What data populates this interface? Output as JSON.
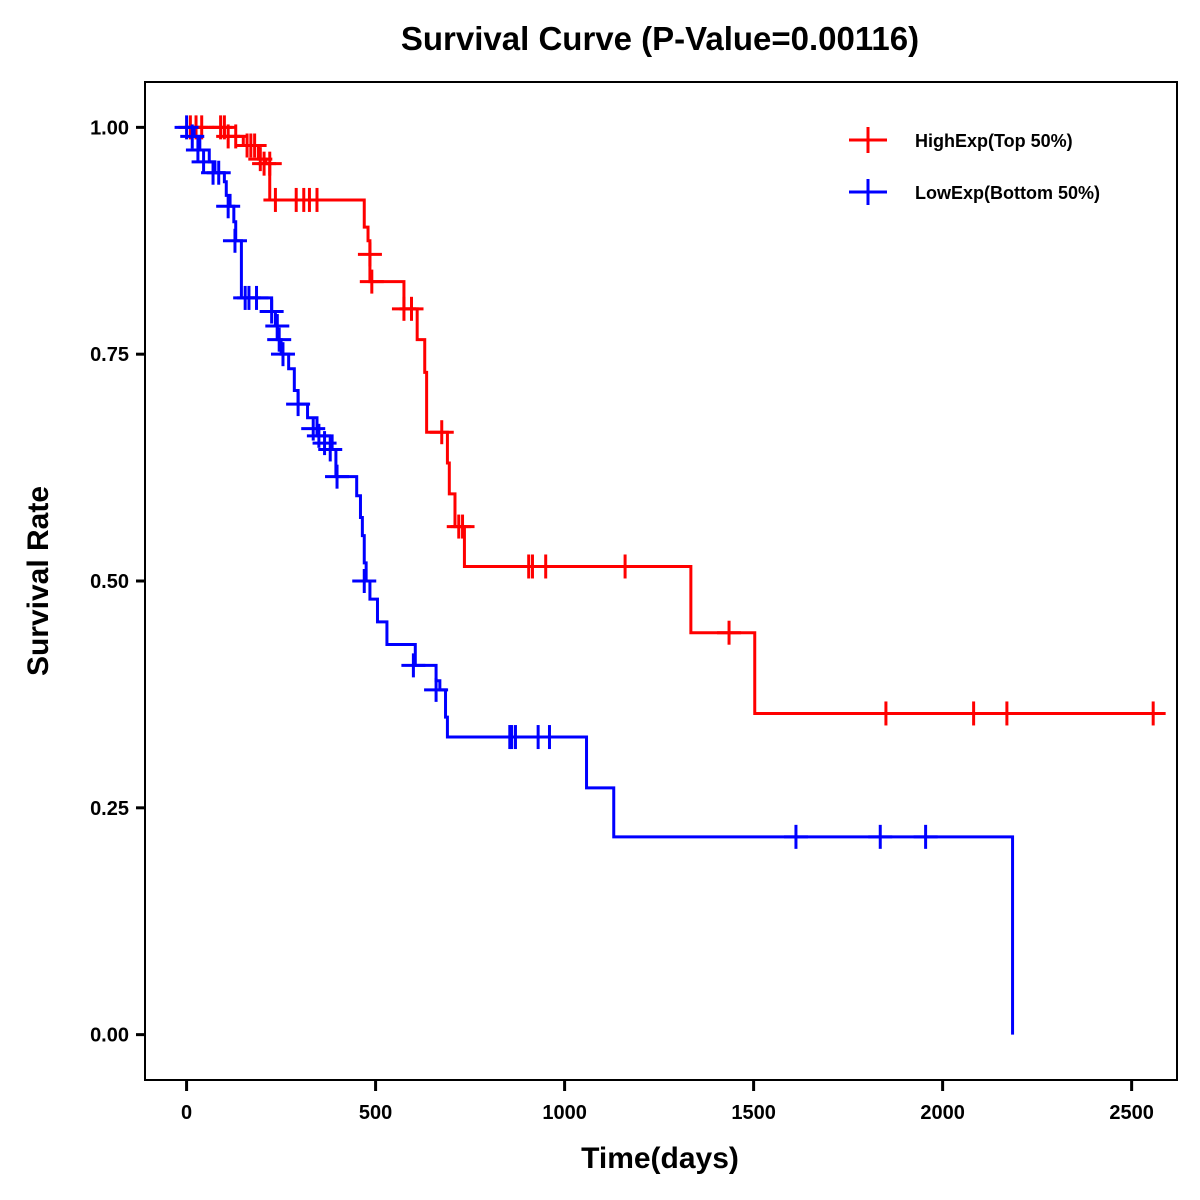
{
  "chart_data": {
    "type": "line",
    "subtype": "kaplan-meier-step",
    "title": "Survival Curve (P-Value=0.00116)",
    "xlabel": "Time(days)",
    "ylabel": "Survival Rate",
    "xlim": [
      -110,
      2620
    ],
    "ylim": [
      -0.05,
      1.05
    ],
    "x_ticks": [
      0,
      500,
      1000,
      1500,
      2000,
      2500
    ],
    "x_tick_labels": [
      "0",
      "500",
      "1000",
      "1500",
      "2000",
      "2500"
    ],
    "y_ticks": [
      0.0,
      0.25,
      0.5,
      0.75,
      1.0
    ],
    "y_tick_labels": [
      "0.00",
      "0.25",
      "0.50",
      "0.75",
      "1.00"
    ],
    "grid": false,
    "legend_position": "top-right",
    "series": [
      {
        "name": "HighExp(Top 50%)",
        "color": "#ff0000",
        "steps": [
          [
            0,
            1.0
          ],
          [
            100,
            0.99
          ],
          [
            150,
            0.98
          ],
          [
            190,
            0.965
          ],
          [
            210,
            0.96
          ],
          [
            220,
            0.92
          ],
          [
            470,
            0.89
          ],
          [
            480,
            0.875
          ],
          [
            485,
            0.83
          ],
          [
            570,
            0.83
          ],
          [
            575,
            0.8
          ],
          [
            600,
            0.8
          ],
          [
            610,
            0.766
          ],
          [
            630,
            0.73
          ],
          [
            635,
            0.664
          ],
          [
            690,
            0.63
          ],
          [
            695,
            0.596
          ],
          [
            710,
            0.56
          ],
          [
            735,
            0.516
          ],
          [
            1334,
            0.443
          ],
          [
            1503,
            0.354
          ],
          [
            2590,
            0.354
          ]
        ],
        "censored": [
          [
            10,
            1.0
          ],
          [
            25,
            1.0
          ],
          [
            40,
            1.0
          ],
          [
            90,
            1.0
          ],
          [
            100,
            1.0
          ],
          [
            110,
            0.99
          ],
          [
            130,
            0.99
          ],
          [
            160,
            0.98
          ],
          [
            170,
            0.98
          ],
          [
            180,
            0.98
          ],
          [
            195,
            0.965
          ],
          [
            205,
            0.96
          ],
          [
            220,
            0.96
          ],
          [
            235,
            0.92
          ],
          [
            290,
            0.92
          ],
          [
            310,
            0.92
          ],
          [
            325,
            0.92
          ],
          [
            345,
            0.92
          ],
          [
            485,
            0.86
          ],
          [
            490,
            0.83
          ],
          [
            575,
            0.8
          ],
          [
            595,
            0.8
          ],
          [
            675,
            0.664
          ],
          [
            720,
            0.56
          ],
          [
            730,
            0.56
          ],
          [
            905,
            0.516
          ],
          [
            915,
            0.516
          ],
          [
            950,
            0.516
          ],
          [
            1160,
            0.516
          ],
          [
            1435,
            0.443
          ],
          [
            1850,
            0.354
          ],
          [
            2082,
            0.354
          ],
          [
            2170,
            0.354
          ],
          [
            2557,
            0.354
          ]
        ]
      },
      {
        "name": "LowExp(Bottom 50%)",
        "color": "#0000ff",
        "steps": [
          [
            0,
            1.0
          ],
          [
            20,
            0.99
          ],
          [
            35,
            0.975
          ],
          [
            60,
            0.962
          ],
          [
            75,
            0.95
          ],
          [
            100,
            0.94
          ],
          [
            105,
            0.925
          ],
          [
            115,
            0.913
          ],
          [
            125,
            0.896
          ],
          [
            130,
            0.875
          ],
          [
            145,
            0.812
          ],
          [
            200,
            0.812
          ],
          [
            225,
            0.797
          ],
          [
            235,
            0.781
          ],
          [
            240,
            0.766
          ],
          [
            250,
            0.75
          ],
          [
            270,
            0.734
          ],
          [
            285,
            0.71
          ],
          [
            295,
            0.695
          ],
          [
            320,
            0.68
          ],
          [
            345,
            0.66
          ],
          [
            385,
            0.645
          ],
          [
            395,
            0.615
          ],
          [
            450,
            0.594
          ],
          [
            460,
            0.57
          ],
          [
            465,
            0.55
          ],
          [
            470,
            0.52
          ],
          [
            475,
            0.5
          ],
          [
            485,
            0.48
          ],
          [
            505,
            0.455
          ],
          [
            530,
            0.43
          ],
          [
            600,
            0.43
          ],
          [
            605,
            0.407
          ],
          [
            655,
            0.407
          ],
          [
            660,
            0.39
          ],
          [
            670,
            0.38
          ],
          [
            685,
            0.35
          ],
          [
            690,
            0.328
          ],
          [
            1058,
            0.272
          ],
          [
            1130,
            0.218
          ],
          [
            2185,
            0.0
          ]
        ],
        "censored": [
          [
            0,
            1.0
          ],
          [
            15,
            0.99
          ],
          [
            30,
            0.975
          ],
          [
            45,
            0.962
          ],
          [
            70,
            0.95
          ],
          [
            85,
            0.95
          ],
          [
            110,
            0.913
          ],
          [
            128,
            0.875
          ],
          [
            155,
            0.812
          ],
          [
            165,
            0.812
          ],
          [
            185,
            0.812
          ],
          [
            225,
            0.797
          ],
          [
            240,
            0.781
          ],
          [
            245,
            0.766
          ],
          [
            255,
            0.75
          ],
          [
            295,
            0.695
          ],
          [
            335,
            0.668
          ],
          [
            350,
            0.66
          ],
          [
            365,
            0.652
          ],
          [
            380,
            0.645
          ],
          [
            398,
            0.615
          ],
          [
            470,
            0.5
          ],
          [
            600,
            0.407
          ],
          [
            660,
            0.38
          ],
          [
            855,
            0.328
          ],
          [
            860,
            0.328
          ],
          [
            870,
            0.328
          ],
          [
            930,
            0.328
          ],
          [
            960,
            0.328
          ],
          [
            1612,
            0.218
          ],
          [
            1835,
            0.218
          ],
          [
            1955,
            0.218
          ]
        ]
      }
    ]
  }
}
